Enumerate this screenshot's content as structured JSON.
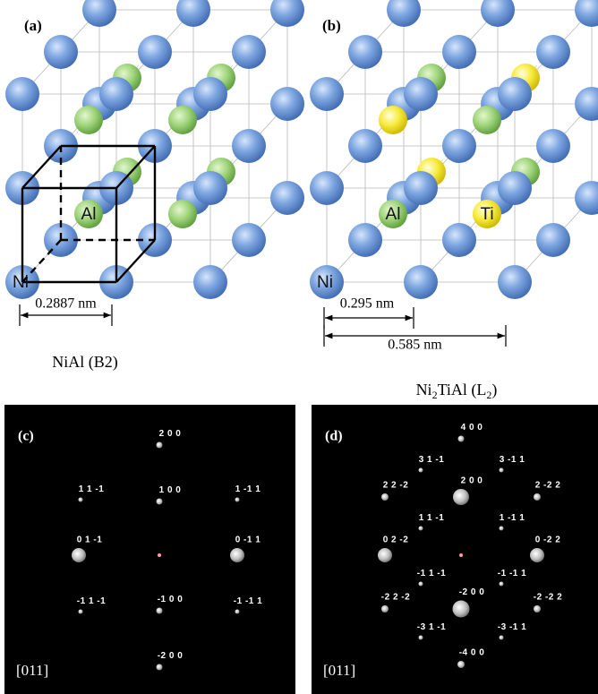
{
  "panels": [
    {
      "label": "(a)",
      "atom_labels": [
        "Ni",
        "Al"
      ],
      "dimensions": [
        "0.2887 nm"
      ],
      "caption": [
        {
          "text": "NiAl (B2)"
        }
      ]
    },
    {
      "label": "(b)",
      "atom_labels": [
        "Ni",
        "Al",
        "Ti"
      ],
      "dimensions": [
        "0.295 nm",
        "0.585 nm"
      ],
      "caption": [
        {
          "text": "Ni"
        },
        {
          "text": "2",
          "sub": true
        },
        {
          "text": "TiAl (L"
        },
        {
          "text": "2",
          "sub": true
        },
        {
          "text": ")"
        }
      ]
    }
  ],
  "patterns": [
    {
      "label": "(c)",
      "zone_axis": "[011]",
      "spots": [
        "2 0 0",
        "1 0 0",
        "-1 0 0",
        "-2 0 0",
        "1 1 -1",
        "1 -1 1",
        "0 1 -1",
        "0 -1 1",
        "-1 1 -1",
        "-1 -1 1"
      ]
    },
    {
      "label": "(d)",
      "zone_axis": "[011]",
      "spots": [
        "4 0 0",
        "3 1 -1",
        "3 -1 1",
        "2 2 -2",
        "2 0 0",
        "2 -2 2",
        "1 1 -1",
        "1 -1 1",
        "0 2 -2",
        "0 -2 2",
        "-1 1 -1",
        "-1 -1 1",
        "-2 2 -2",
        "-2 0 0",
        "-2 -2 2",
        "-3 1 -1",
        "-3 -1 1",
        "-4 0 0"
      ]
    }
  ]
}
